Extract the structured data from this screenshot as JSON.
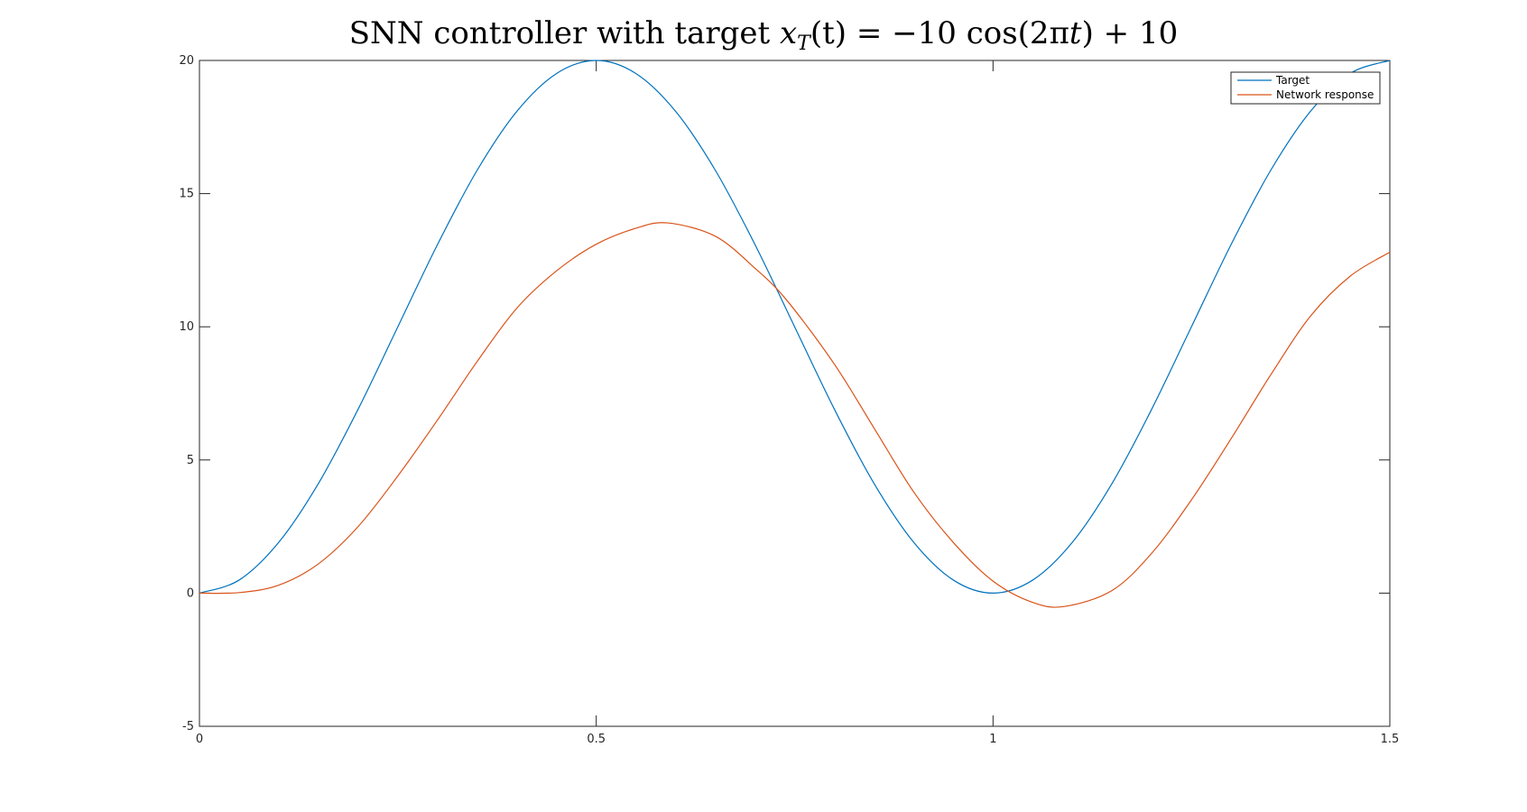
{
  "chart_data": {
    "type": "line",
    "title_parts": {
      "prefix": "SNN controller with target ",
      "var": "x",
      "sub": "T",
      "arg": "(t)",
      "equals": " = −10 cos(2π",
      "t": "t",
      "suffix": ") + 10"
    },
    "xlabel": "",
    "ylabel": "",
    "xlim": [
      0,
      1.5
    ],
    "ylim": [
      -5,
      20
    ],
    "xticks": [
      0,
      0.5,
      1,
      1.5
    ],
    "xtick_labels": [
      "0",
      "0.5",
      "1",
      "1.5"
    ],
    "yticks": [
      -5,
      0,
      5,
      10,
      15,
      20
    ],
    "ytick_labels": [
      "-5",
      "0",
      "5",
      "10",
      "15",
      "20"
    ],
    "legend_position": "top-right",
    "series": [
      {
        "name": "Target",
        "color": "#0072BD",
        "x": [
          0,
          0.05,
          0.1,
          0.15,
          0.2,
          0.25,
          0.3,
          0.35,
          0.4,
          0.45,
          0.5,
          0.55,
          0.6,
          0.65,
          0.7,
          0.75,
          0.8,
          0.85,
          0.9,
          0.95,
          1.0,
          1.05,
          1.1,
          1.15,
          1.2,
          1.25,
          1.3,
          1.35,
          1.4,
          1.45,
          1.5
        ],
        "y": [
          0,
          0.49,
          1.91,
          4.12,
          6.91,
          10.0,
          13.09,
          15.88,
          18.09,
          19.51,
          20.0,
          19.51,
          18.09,
          15.88,
          13.09,
          10.0,
          6.91,
          4.12,
          1.91,
          0.49,
          0,
          0.49,
          1.91,
          4.12,
          6.91,
          10.0,
          13.09,
          15.88,
          18.09,
          19.51,
          20.0
        ]
      },
      {
        "name": "Network response",
        "color": "#D95319",
        "x": [
          0,
          0.05,
          0.1,
          0.15,
          0.2,
          0.25,
          0.3,
          0.35,
          0.4,
          0.45,
          0.5,
          0.55,
          0.59,
          0.65,
          0.7,
          0.74,
          0.8,
          0.85,
          0.9,
          0.95,
          1.0,
          1.05,
          1.09,
          1.15,
          1.2,
          1.25,
          1.3,
          1.35,
          1.4,
          1.45,
          1.5
        ],
        "y": [
          0,
          0.02,
          0.3,
          1.1,
          2.5,
          4.4,
          6.5,
          8.7,
          10.7,
          12.1,
          13.1,
          13.7,
          13.9,
          13.4,
          12.2,
          11.0,
          8.6,
          6.2,
          3.8,
          1.9,
          0.45,
          -0.35,
          -0.5,
          0.1,
          1.5,
          3.5,
          5.8,
          8.2,
          10.4,
          11.9,
          12.8
        ]
      }
    ]
  }
}
